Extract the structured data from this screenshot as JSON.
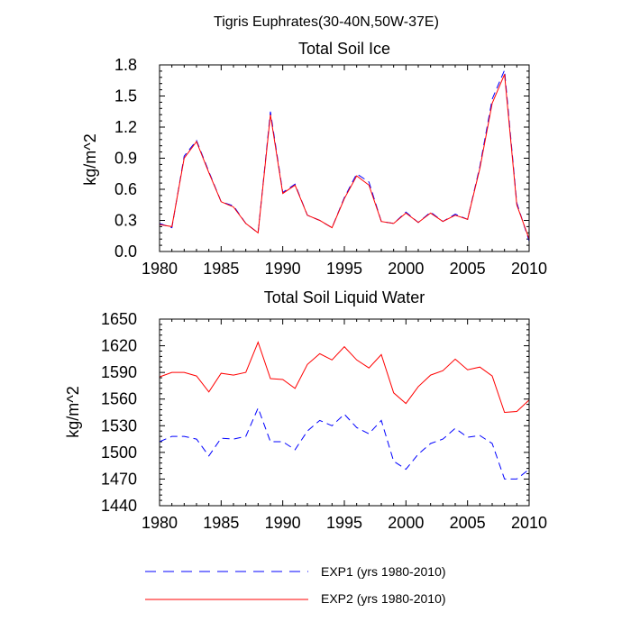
{
  "figure_title": "Tigris Euphrates(30-40N,50W-37E)",
  "legend": [
    {
      "label": "EXP1 (yrs 1980-2010)",
      "color": "#0000ff",
      "style": "dashed"
    },
    {
      "label": "EXP2 (yrs 1980-2010)",
      "color": "#ff0000",
      "style": "solid"
    }
  ],
  "chart_data": [
    {
      "type": "line",
      "title": "Total Soil Ice",
      "xlabel": "",
      "ylabel": "kg/m^2",
      "xlim": [
        1980,
        2010
      ],
      "ylim": [
        0.0,
        1.8
      ],
      "xticks": [
        1980,
        1985,
        1990,
        1995,
        2000,
        2005,
        2010
      ],
      "xtick_labels": [
        "1980",
        "1985",
        "1990",
        "1995",
        "2000",
        "2005",
        "2010"
      ],
      "yticks": [
        0.0,
        0.3,
        0.6,
        0.9,
        1.2,
        1.5,
        1.8
      ],
      "ytick_labels": [
        "0.0",
        "0.3",
        "0.6",
        "0.9",
        "1.2",
        "1.5",
        "1.8"
      ],
      "grid": false,
      "x": [
        1980,
        1981,
        1982,
        1983,
        1984,
        1985,
        1986,
        1987,
        1988,
        1989,
        1990,
        1991,
        1992,
        1993,
        1994,
        1995,
        1996,
        1997,
        1998,
        1999,
        2000,
        2001,
        2002,
        2003,
        2004,
        2005,
        2006,
        2007,
        2008,
        2009,
        2010
      ],
      "series": [
        {
          "name": "EXP1 (yrs 1980-2010)",
          "color": "#0000ff",
          "style": "dashed",
          "values": [
            0.27,
            0.23,
            0.92,
            1.07,
            0.77,
            0.48,
            0.44,
            0.27,
            0.18,
            1.35,
            0.57,
            0.65,
            0.35,
            0.3,
            0.23,
            0.52,
            0.75,
            0.67,
            0.29,
            0.27,
            0.38,
            0.28,
            0.38,
            0.29,
            0.36,
            0.31,
            0.82,
            1.47,
            1.75,
            0.47,
            0.1
          ]
        },
        {
          "name": "EXP2 (yrs 1980-2010)",
          "color": "#ff0000",
          "style": "solid",
          "values": [
            0.26,
            0.24,
            0.9,
            1.06,
            0.76,
            0.48,
            0.43,
            0.27,
            0.18,
            1.32,
            0.56,
            0.64,
            0.35,
            0.3,
            0.23,
            0.51,
            0.73,
            0.64,
            0.29,
            0.27,
            0.37,
            0.28,
            0.37,
            0.29,
            0.35,
            0.31,
            0.8,
            1.43,
            1.71,
            0.45,
            0.12
          ]
        }
      ]
    },
    {
      "type": "line",
      "title": "Total Soil Liquid Water",
      "xlabel": "",
      "ylabel": "kg/m^2",
      "xlim": [
        1980,
        2010
      ],
      "ylim": [
        1440,
        1650
      ],
      "xticks": [
        1980,
        1985,
        1990,
        1995,
        2000,
        2005,
        2010
      ],
      "xtick_labels": [
        "1980",
        "1985",
        "1990",
        "1995",
        "2000",
        "2005",
        "2010"
      ],
      "yticks": [
        1440,
        1470,
        1500,
        1530,
        1560,
        1590,
        1620,
        1650
      ],
      "ytick_labels": [
        "1440",
        "1470",
        "1500",
        "1530",
        "1560",
        "1590",
        "1620",
        "1650"
      ],
      "grid": false,
      "x": [
        1980,
        1981,
        1982,
        1983,
        1984,
        1985,
        1986,
        1987,
        1988,
        1989,
        1990,
        1991,
        1992,
        1993,
        1994,
        1995,
        1996,
        1997,
        1998,
        1999,
        2000,
        2001,
        2002,
        2003,
        2004,
        2005,
        2006,
        2007,
        2008,
        2009,
        2010
      ],
      "series": [
        {
          "name": "EXP1 (yrs 1980-2010)",
          "color": "#0000ff",
          "style": "dashed",
          "values": [
            1512,
            1518,
            1518,
            1515,
            1496,
            1516,
            1515,
            1518,
            1550,
            1512,
            1512,
            1503,
            1524,
            1536,
            1530,
            1543,
            1528,
            1521,
            1536,
            1490,
            1481,
            1498,
            1510,
            1515,
            1527,
            1517,
            1519,
            1510,
            1470,
            1470,
            1481
          ]
        },
        {
          "name": "EXP2 (yrs 1980-2010)",
          "color": "#ff0000",
          "style": "solid",
          "values": [
            1585,
            1590,
            1590,
            1586,
            1568,
            1589,
            1587,
            1590,
            1624,
            1583,
            1582,
            1572,
            1599,
            1611,
            1604,
            1619,
            1604,
            1595,
            1610,
            1567,
            1555,
            1574,
            1587,
            1592,
            1605,
            1593,
            1596,
            1586,
            1545,
            1546,
            1559
          ]
        }
      ]
    }
  ]
}
